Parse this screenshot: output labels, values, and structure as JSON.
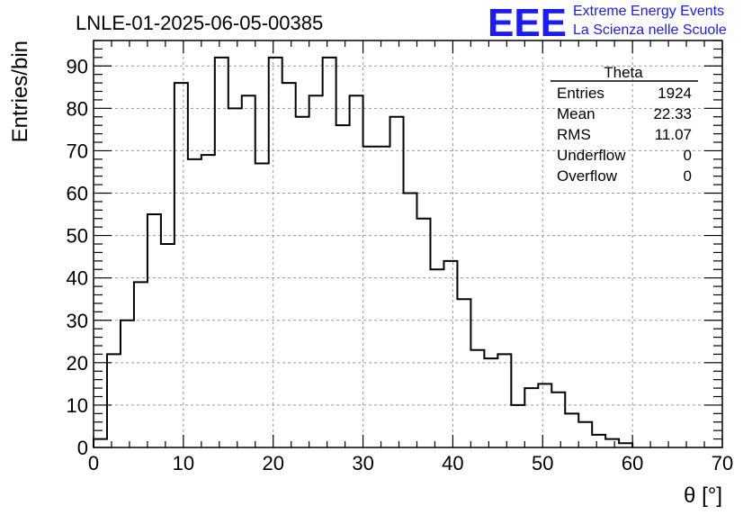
{
  "chart_data": {
    "type": "bar",
    "title": "LNLE-01-2025-06-05-00385",
    "xlabel": "θ [°]",
    "ylabel": "Entries/bin",
    "xlim": [
      0,
      70
    ],
    "ylim": [
      0,
      96
    ],
    "x_ticks": [
      0,
      10,
      20,
      30,
      40,
      50,
      60,
      70
    ],
    "y_ticks": [
      0,
      10,
      20,
      30,
      40,
      50,
      60,
      70,
      80,
      90
    ],
    "grid": true,
    "bin_width": 1.5,
    "bins": [
      [
        0,
        1.5,
        2
      ],
      [
        1.5,
        3,
        22
      ],
      [
        3,
        4.5,
        30
      ],
      [
        4.5,
        6,
        39
      ],
      [
        6,
        7.5,
        55
      ],
      [
        7.5,
        9,
        48
      ],
      [
        9,
        10.5,
        86
      ],
      [
        10.5,
        12,
        68
      ],
      [
        12,
        13.5,
        69
      ],
      [
        13.5,
        15,
        92
      ],
      [
        15,
        16.5,
        80
      ],
      [
        16.5,
        18,
        83
      ],
      [
        18,
        19.5,
        67
      ],
      [
        19.5,
        21,
        92
      ],
      [
        21,
        22.5,
        86
      ],
      [
        22.5,
        24,
        78
      ],
      [
        24,
        25.5,
        83
      ],
      [
        25.5,
        27,
        92
      ],
      [
        27,
        28.5,
        76
      ],
      [
        28.5,
        30,
        83
      ],
      [
        30,
        31.5,
        71
      ],
      [
        31.5,
        33,
        71
      ],
      [
        33,
        34.5,
        78
      ],
      [
        34.5,
        36,
        60
      ],
      [
        36,
        37.5,
        54
      ],
      [
        37.5,
        39,
        42
      ],
      [
        39,
        40.5,
        44
      ],
      [
        40.5,
        42,
        35
      ],
      [
        42,
        43.5,
        23
      ],
      [
        43.5,
        45,
        21
      ],
      [
        45,
        46.5,
        22
      ],
      [
        46.5,
        48,
        10
      ],
      [
        48,
        49.5,
        14
      ],
      [
        49.5,
        51,
        15
      ],
      [
        51,
        52.5,
        13
      ],
      [
        52.5,
        54,
        8
      ],
      [
        54,
        55.5,
        6
      ],
      [
        55.5,
        57,
        3
      ],
      [
        57,
        58.5,
        2
      ],
      [
        58.5,
        60,
        1
      ]
    ],
    "legend_placement": "top-right"
  },
  "stats": {
    "name": "Theta",
    "rows": [
      {
        "label": "Entries",
        "value": "1924"
      },
      {
        "label": "Mean",
        "value": "22.33"
      },
      {
        "label": "RMS",
        "value": "11.07"
      },
      {
        "label": "Underflow",
        "value": "0"
      },
      {
        "label": "Overflow",
        "value": "0"
      }
    ]
  },
  "branding": {
    "logo": "EEE",
    "line1": "Extreme Energy Events",
    "line2": "La Scienza nelle Scuole",
    "color": "#1a1aff"
  }
}
